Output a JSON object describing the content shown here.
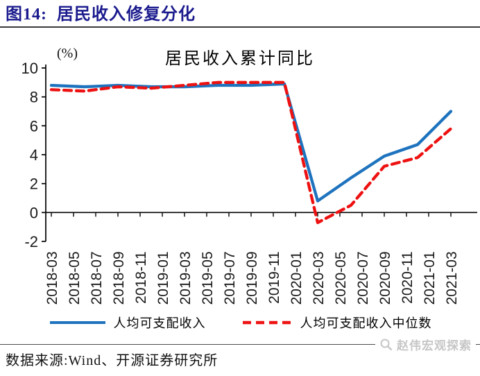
{
  "header": {
    "figure_label": "图14:",
    "title": "居民收入修复分化"
  },
  "chart_data": {
    "type": "line",
    "title": "居民收入累计同比",
    "unit_label": "(%)",
    "xlabel": "",
    "ylabel": "",
    "ylim": [
      -2,
      10
    ],
    "y_tick_labels": [
      10,
      8,
      6,
      4,
      2,
      0,
      -2
    ],
    "x_tick_labels": [
      "2018-03",
      "2018-05",
      "2018-07",
      "2018-09",
      "2018-11",
      "2019-01",
      "2019-03",
      "2019-05",
      "2019-07",
      "2019-09",
      "2019-11",
      "2020-01",
      "2020-03",
      "2020-05",
      "2020-07",
      "2020-09",
      "2020-11",
      "2021-01",
      "2021-03"
    ],
    "x_tick_month_step": 2,
    "total_months": 36,
    "grid": false,
    "legend_position": "bottom",
    "axis_color": "#000000",
    "series": [
      {
        "name": "人均可支配收入",
        "color": "#1E73BE",
        "line_style": "solid",
        "x": [
          "2018-03",
          "2018-06",
          "2018-09",
          "2018-12",
          "2019-03",
          "2019-06",
          "2019-09",
          "2019-12",
          "2020-03",
          "2020-06",
          "2020-09",
          "2020-12",
          "2021-03"
        ],
        "x_months": [
          0,
          3,
          6,
          9,
          12,
          15,
          18,
          21,
          24,
          27,
          30,
          33,
          36
        ],
        "values": [
          8.8,
          8.7,
          8.8,
          8.7,
          8.7,
          8.8,
          8.8,
          8.9,
          0.8,
          2.4,
          3.9,
          4.7,
          7.0
        ]
      },
      {
        "name": "人均可支配收入中位数",
        "color": "#EE1111",
        "line_style": "dashed",
        "x": [
          "2018-03",
          "2018-06",
          "2018-09",
          "2018-12",
          "2019-03",
          "2019-06",
          "2019-09",
          "2019-12",
          "2020-03",
          "2020-06",
          "2020-09",
          "2020-12",
          "2021-03"
        ],
        "x_months": [
          0,
          3,
          6,
          9,
          12,
          15,
          18,
          21,
          24,
          27,
          30,
          33,
          36
        ],
        "values": [
          8.5,
          8.4,
          8.7,
          8.6,
          8.8,
          9.0,
          9.0,
          9.0,
          -0.7,
          0.5,
          3.2,
          3.8,
          5.8
        ]
      }
    ]
  },
  "footer": {
    "source": "数据来源:Wind、开源证券研究所",
    "watermark": "赵伟宏观探索"
  }
}
